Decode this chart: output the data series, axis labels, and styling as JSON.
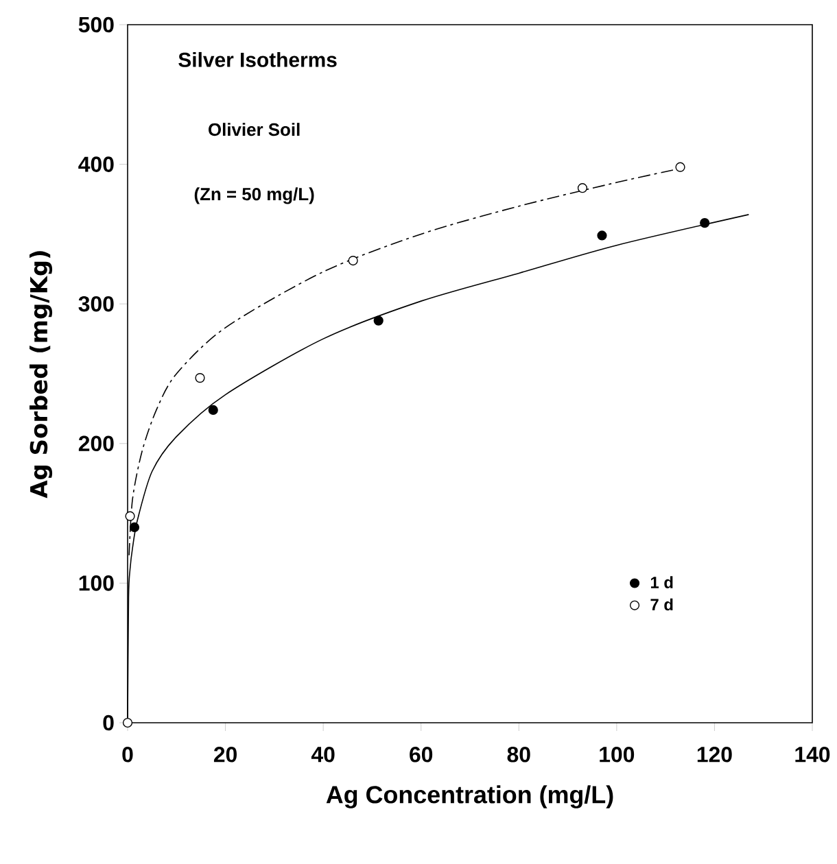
{
  "chart_data": {
    "type": "scatter",
    "title": "Silver Isotherms",
    "subtitle": "Olivier Soil",
    "annotations": [
      "(Zn = 50 mg/L)"
    ],
    "xlabel": "Ag Concentration (mg/L)",
    "ylabel": "Ag Sorbed (mg/Kg)",
    "xlim": [
      0,
      140
    ],
    "ylim": [
      0,
      500
    ],
    "xticks": [
      0,
      20,
      40,
      60,
      80,
      100,
      120,
      140
    ],
    "yticks": [
      0,
      100,
      200,
      300,
      400,
      500
    ],
    "legend": "bottom right",
    "series": [
      {
        "name": "1 d",
        "marker": "circle",
        "color": "#000000",
        "x": [
          1.4,
          17.5,
          51.3,
          97,
          118
        ],
        "values": [
          140,
          224,
          288,
          349,
          358
        ]
      },
      {
        "name": "7 d",
        "marker": "circle",
        "color": "#ffffff",
        "x": [
          0,
          0.5,
          14.8,
          46.1,
          93,
          113
        ],
        "values": [
          0,
          148,
          247,
          331,
          383,
          398
        ]
      },
      {
        "type": "line",
        "marker": "none",
        "line_style": "solid",
        "color": "#000000",
        "x": [
          0,
          0.2,
          0.5,
          1,
          2,
          5,
          10,
          20,
          40,
          60,
          80,
          100,
          127
        ],
        "values": [
          0,
          90,
          110,
          125,
          145,
          180,
          205,
          235,
          275,
          302,
          322,
          342,
          364
        ]
      },
      {
        "type": "line",
        "marker": "none",
        "line_style": "dashed",
        "color": "#000000",
        "x": [
          0.3,
          1,
          3,
          6,
          10,
          20,
          40,
          60,
          80,
          100,
          113
        ],
        "values": [
          120,
          160,
          195,
          225,
          250,
          283,
          323,
          350,
          370,
          387,
          397
        ]
      }
    ]
  }
}
